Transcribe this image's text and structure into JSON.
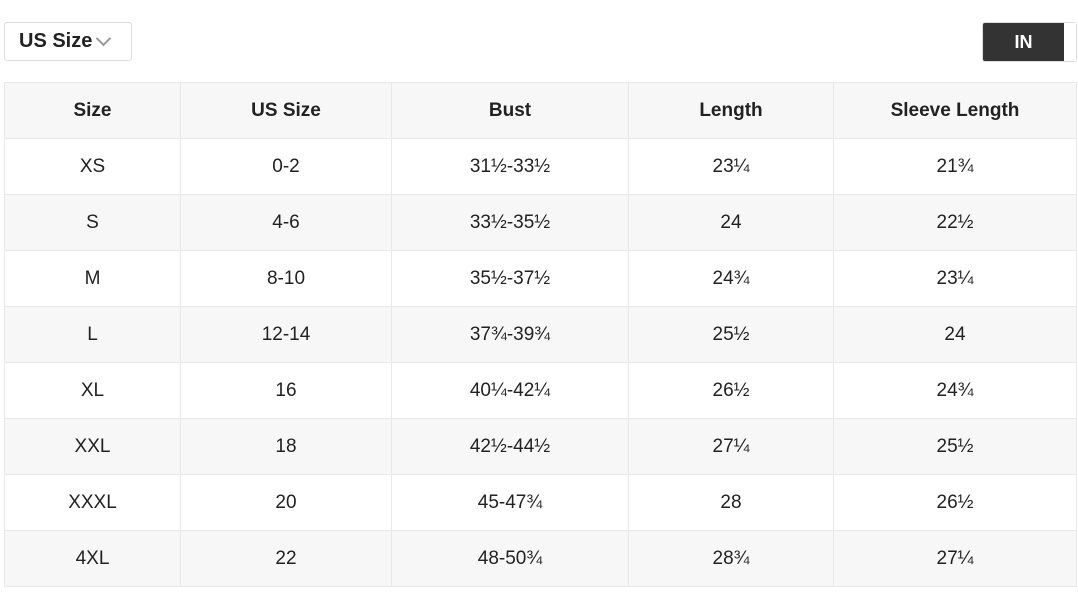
{
  "unit_select": {
    "value": "US Size"
  },
  "unit_toggle": {
    "active": "IN"
  },
  "table": {
    "headers": [
      "Size",
      "US Size",
      "Bust",
      "Length",
      "Sleeve Length"
    ],
    "rows": [
      [
        "XS",
        "0-2",
        "31½-33½",
        "23¼",
        "21¾"
      ],
      [
        "S",
        "4-6",
        "33½-35½",
        "24",
        "22½"
      ],
      [
        "M",
        "8-10",
        "35½-37½",
        "24¾",
        "23¼"
      ],
      [
        "L",
        "12-14",
        "37¾-39¾",
        "25½",
        "24"
      ],
      [
        "XL",
        "16",
        "40¼-42¼",
        "26½",
        "24¾"
      ],
      [
        "XXL",
        "18",
        "42½-44½",
        "27¼",
        "25½"
      ],
      [
        "XXXL",
        "20",
        "45-47¾",
        "28",
        "26½"
      ],
      [
        "4XL",
        "22",
        "48-50¾",
        "28¾",
        "27¼"
      ]
    ]
  }
}
